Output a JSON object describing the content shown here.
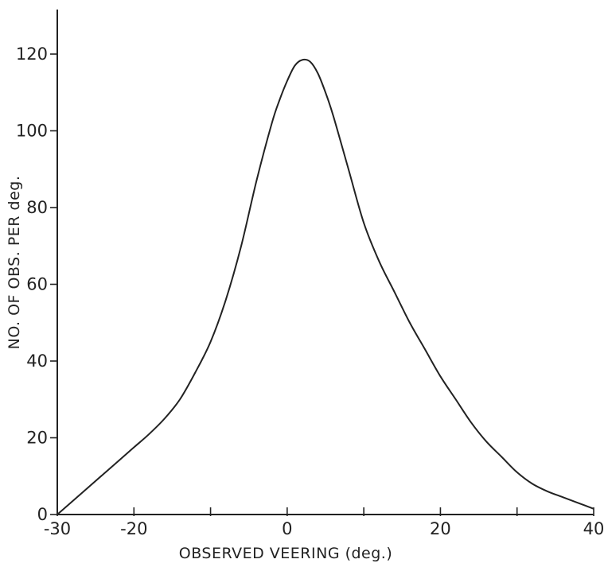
{
  "chart_data": {
    "type": "line",
    "title": "",
    "xlabel": "OBSERVED VEERING (deg.)",
    "ylabel": "NO. OF OBS. PER deg.",
    "xlim": [
      -30,
      40
    ],
    "ylim": [
      0,
      130
    ],
    "x_ticks": [
      -30,
      -20,
      -10,
      0,
      10,
      20,
      30,
      40
    ],
    "x_tick_labels": [
      "-30",
      "-20",
      "",
      "0",
      "",
      "20",
      "",
      "40"
    ],
    "y_ticks": [
      0,
      20,
      40,
      60,
      80,
      100,
      120
    ],
    "y_tick_labels": [
      "0",
      "20",
      "40",
      "60",
      "80",
      "100",
      "120"
    ],
    "grid": false,
    "series": [
      {
        "x": [
          -30,
          -28,
          -26,
          -24,
          -22,
          -20,
          -18,
          -16,
          -14,
          -12,
          -10,
          -8,
          -6,
          -4,
          -2,
          -1,
          0,
          1,
          2,
          3,
          4,
          5,
          6,
          8,
          10,
          12,
          14,
          16,
          18,
          20,
          22,
          24,
          26,
          28,
          30,
          32,
          34,
          36,
          38,
          40
        ],
        "y": [
          0,
          3.5,
          7,
          10.5,
          14,
          17.5,
          21,
          25,
          30,
          37,
          45,
          56,
          70,
          87,
          102,
          108,
          113,
          117,
          118.5,
          118,
          115,
          110,
          104,
          90,
          76,
          66,
          58,
          50,
          43,
          36,
          30,
          24,
          19,
          15,
          11,
          8,
          6,
          4.5,
          3,
          1.5
        ]
      }
    ]
  }
}
